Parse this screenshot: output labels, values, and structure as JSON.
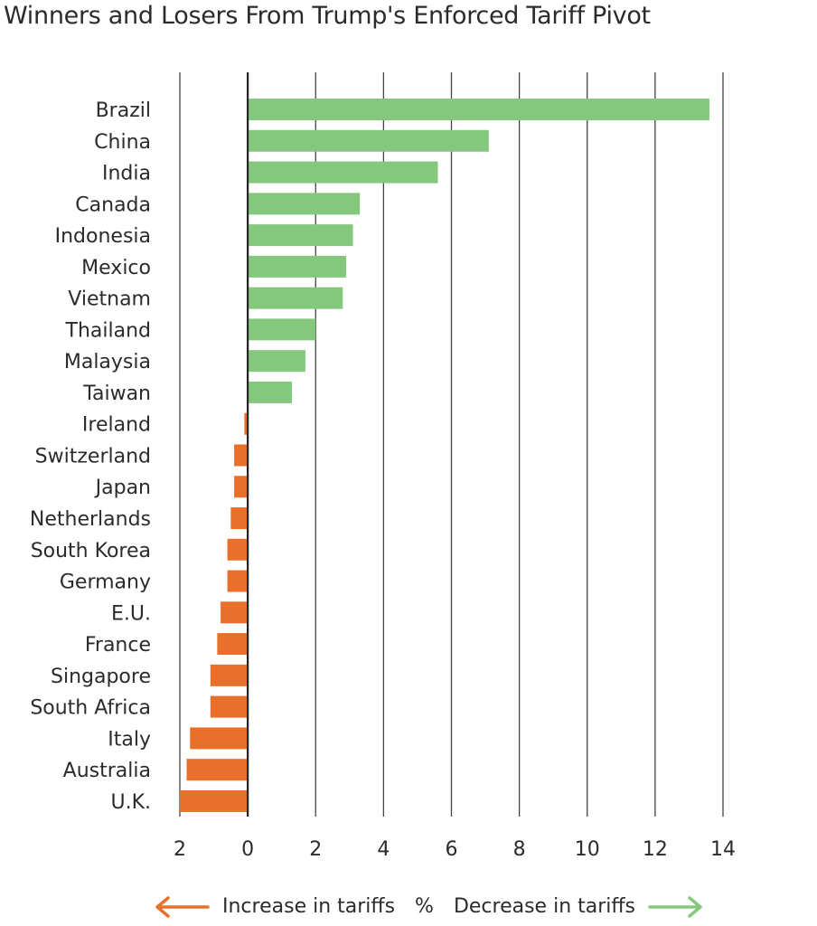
{
  "title": "Winners and Losers From Trump's Enforced Tariff Pivot",
  "chart_data": {
    "type": "bar",
    "orientation": "horizontal",
    "title": "Winners and Losers From Trump's Enforced Tariff Pivot",
    "categories": [
      "Brazil",
      "China",
      "India",
      "Canada",
      "Indonesia",
      "Mexico",
      "Vietnam",
      "Thailand",
      "Malaysia",
      "Taiwan",
      "Ireland",
      "Switzerland",
      "Japan",
      "Netherlands",
      "South Korea",
      "Germany",
      "E.U.",
      "France",
      "Singapore",
      "South Africa",
      "Italy",
      "Australia",
      "U.K."
    ],
    "values": [
      13.6,
      7.1,
      5.6,
      3.3,
      3.1,
      2.9,
      2.8,
      2.0,
      1.7,
      1.3,
      -0.1,
      -0.4,
      -0.4,
      -0.5,
      -0.6,
      -0.6,
      -0.8,
      -0.9,
      -1.1,
      -1.1,
      -1.7,
      -1.8,
      -2.0
    ],
    "xlim": [
      -2,
      14
    ],
    "xticks": [
      -2,
      0,
      2,
      4,
      6,
      8,
      10,
      12,
      14
    ],
    "xtick_labels": [
      "2",
      "0",
      "2",
      "4",
      "6",
      "8",
      "10",
      "12",
      "14"
    ],
    "grid": "vertical",
    "colors": {
      "decrease": "#84c87e",
      "increase": "#e8702a"
    },
    "legend": {
      "placement": "bottom",
      "increase_label": "Increase in tariffs",
      "unit_label": "%",
      "decrease_label": "Decrease in tariffs"
    }
  }
}
